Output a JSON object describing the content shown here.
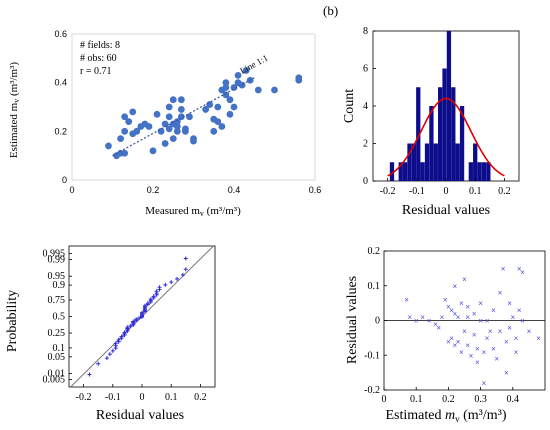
{
  "panel_label": "(b)",
  "chart_data": [
    {
      "id": "scatter",
      "type": "scatter",
      "title": "",
      "xlabel": "Measured m",
      "xlabel_sub": "v",
      "xlabel_unit": " (m³/m³)",
      "ylabel": "Estimated m",
      "ylabel_sub": "v",
      "ylabel_unit": " (m³/m³)",
      "xlim": [
        0,
        0.6
      ],
      "ylim": [
        0,
        0.6
      ],
      "xticks": [
        0,
        0.2,
        0.4,
        0.6
      ],
      "yticks": [
        0,
        0.2,
        0.4,
        0.6
      ],
      "xtick_labels": [
        "0",
        "0.2",
        "0.4",
        "0.6"
      ],
      "ytick_labels": [
        "0",
        "0.2",
        "0.4",
        "0.6"
      ],
      "annotations": [
        "# fields: 8",
        "# obs: 60",
        "r = 0.71"
      ],
      "line_label": "Line 1:1",
      "trend": {
        "x": [
          0.1,
          0.45
        ],
        "y": [
          0.1,
          0.42
        ]
      },
      "color": "#4472C4",
      "points": [
        [
          0.09,
          0.14
        ],
        [
          0.11,
          0.1
        ],
        [
          0.12,
          0.11
        ],
        [
          0.12,
          0.17
        ],
        [
          0.13,
          0.2
        ],
        [
          0.13,
          0.11
        ],
        [
          0.13,
          0.26
        ],
        [
          0.14,
          0.24
        ],
        [
          0.15,
          0.28
        ],
        [
          0.15,
          0.19
        ],
        [
          0.16,
          0.2
        ],
        [
          0.17,
          0.22
        ],
        [
          0.18,
          0.23
        ],
        [
          0.19,
          0.22
        ],
        [
          0.2,
          0.12
        ],
        [
          0.21,
          0.27
        ],
        [
          0.22,
          0.2
        ],
        [
          0.23,
          0.23
        ],
        [
          0.23,
          0.15
        ],
        [
          0.24,
          0.21
        ],
        [
          0.24,
          0.26
        ],
        [
          0.24,
          0.3
        ],
        [
          0.25,
          0.33
        ],
        [
          0.25,
          0.23
        ],
        [
          0.25,
          0.17
        ],
        [
          0.26,
          0.22
        ],
        [
          0.26,
          0.2
        ],
        [
          0.26,
          0.24
        ],
        [
          0.27,
          0.26
        ],
        [
          0.27,
          0.29
        ],
        [
          0.27,
          0.33
        ],
        [
          0.28,
          0.21
        ],
        [
          0.28,
          0.2
        ],
        [
          0.29,
          0.26
        ],
        [
          0.3,
          0.17
        ],
        [
          0.3,
          0.16
        ],
        [
          0.33,
          0.29
        ],
        [
          0.34,
          0.31
        ],
        [
          0.35,
          0.2
        ],
        [
          0.35,
          0.25
        ],
        [
          0.36,
          0.24
        ],
        [
          0.36,
          0.3
        ],
        [
          0.37,
          0.37
        ],
        [
          0.37,
          0.22
        ],
        [
          0.38,
          0.35
        ],
        [
          0.38,
          0.38
        ],
        [
          0.38,
          0.4
        ],
        [
          0.39,
          0.33
        ],
        [
          0.39,
          0.27
        ],
        [
          0.4,
          0.3
        ],
        [
          0.4,
          0.38
        ],
        [
          0.41,
          0.4
        ],
        [
          0.41,
          0.43
        ],
        [
          0.42,
          0.39
        ],
        [
          0.43,
          0.45
        ],
        [
          0.44,
          0.41
        ],
        [
          0.46,
          0.37
        ],
        [
          0.5,
          0.37
        ],
        [
          0.56,
          0.41
        ],
        [
          0.56,
          0.42
        ]
      ]
    },
    {
      "id": "histogram",
      "type": "bar",
      "xlabel": "Residual values",
      "ylabel": "Count",
      "xlim": [
        -0.25,
        0.25
      ],
      "ylim": [
        0,
        8
      ],
      "xticks": [
        -0.2,
        -0.1,
        0,
        0.1,
        0.2
      ],
      "yticks": [
        0,
        2,
        4,
        6,
        8
      ],
      "xtick_labels": [
        "-0.2",
        "-0.1",
        "0",
        "0.1",
        "0.2"
      ],
      "ytick_labels": [
        "0",
        "2",
        "4",
        "6",
        "8"
      ],
      "bin_width": 0.0147,
      "bins": [
        {
          "x": -0.185,
          "count": 1
        },
        {
          "x": -0.155,
          "count": 1
        },
        {
          "x": -0.14,
          "count": 1
        },
        {
          "x": -0.125,
          "count": 2
        },
        {
          "x": -0.11,
          "count": 2
        },
        {
          "x": -0.095,
          "count": 5
        },
        {
          "x": -0.08,
          "count": 1
        },
        {
          "x": -0.065,
          "count": 2
        },
        {
          "x": -0.05,
          "count": 4
        },
        {
          "x": -0.035,
          "count": 2
        },
        {
          "x": -0.02,
          "count": 5
        },
        {
          "x": -0.005,
          "count": 6
        },
        {
          "x": 0.01,
          "count": 8
        },
        {
          "x": 0.025,
          "count": 5
        },
        {
          "x": 0.04,
          "count": 2
        },
        {
          "x": 0.055,
          "count": 4
        },
        {
          "x": 0.085,
          "count": 1
        },
        {
          "x": 0.1,
          "count": 2
        },
        {
          "x": 0.115,
          "count": 1
        },
        {
          "x": 0.13,
          "count": 1
        },
        {
          "x": 0.145,
          "count": 1
        }
      ],
      "fit_curve": {
        "mean": 0.0,
        "sd": 0.085,
        "peak": 4.4
      },
      "bar_color": "#0d0d8c",
      "curve_color": "#e00000"
    },
    {
      "id": "probability",
      "type": "scatter",
      "xlabel": "Residual values",
      "ylabel": "Probability",
      "xlim": [
        -0.25,
        0.25
      ],
      "xticks": [
        -0.2,
        -0.1,
        0,
        0.1,
        0.2
      ],
      "xtick_labels": [
        "-0.2",
        "-0.1",
        "0",
        "0.1",
        "0.2"
      ],
      "yticks": [
        0.005,
        0.01,
        0.05,
        0.1,
        0.25,
        0.5,
        0.75,
        0.9,
        0.95,
        0.99,
        0.995
      ],
      "ytick_labels": [
        "0.005",
        "0.01",
        "0.05",
        "0.1",
        "0.25",
        "0.5",
        "0.75",
        "0.9",
        "0.95",
        "0.99",
        "0.995"
      ],
      "reference_line": {
        "mean": 0.0,
        "sd": 0.085
      },
      "color": "#2a2ad8"
    },
    {
      "id": "residuals",
      "type": "scatter",
      "xlabel": "Estimated ",
      "xlabel_var": "m",
      "xlabel_sub": "v",
      "xlabel_unit": " (m³/m³)",
      "ylabel": "Residual values",
      "xlim": [
        0,
        0.5
      ],
      "ylim": [
        -0.2,
        0.2
      ],
      "xticks": [
        0,
        0.1,
        0.2,
        0.3,
        0.4
      ],
      "yticks": [
        -0.2,
        -0.1,
        0,
        0.1,
        0.2
      ],
      "xtick_labels": [
        "0",
        "0.1",
        "0.2",
        "0.3",
        "0.4"
      ],
      "ytick_labels": [
        "-0.2",
        "-0.1",
        "0",
        "0.1",
        "0.2"
      ],
      "color": "#4a4ae0",
      "points": [
        [
          0.07,
          0.06
        ],
        [
          0.08,
          0.01
        ],
        [
          0.1,
          0.0
        ],
        [
          0.12,
          0.01
        ],
        [
          0.14,
          0.0
        ],
        [
          0.16,
          -0.01
        ],
        [
          0.17,
          -0.02
        ],
        [
          0.18,
          0.01
        ],
        [
          0.19,
          0.06
        ],
        [
          0.2,
          -0.06
        ],
        [
          0.2,
          0.04
        ],
        [
          0.21,
          0.03
        ],
        [
          0.21,
          -0.05
        ],
        [
          0.22,
          0.02
        ],
        [
          0.22,
          -0.07
        ],
        [
          0.22,
          0.1
        ],
        [
          0.23,
          0.01
        ],
        [
          0.23,
          -0.06
        ],
        [
          0.24,
          0.05
        ],
        [
          0.24,
          -0.09
        ],
        [
          0.25,
          0.12
        ],
        [
          0.25,
          -0.03
        ],
        [
          0.26,
          0.01
        ],
        [
          0.26,
          -0.07
        ],
        [
          0.26,
          0.04
        ],
        [
          0.27,
          -0.1
        ],
        [
          0.28,
          -0.04
        ],
        [
          0.28,
          0.02
        ],
        [
          0.29,
          -0.12
        ],
        [
          0.29,
          -0.08
        ],
        [
          0.3,
          0.0
        ],
        [
          0.3,
          0.05
        ],
        [
          0.31,
          -0.09
        ],
        [
          0.31,
          -0.18
        ],
        [
          0.32,
          0.0
        ],
        [
          0.32,
          -0.05
        ],
        [
          0.33,
          -0.03
        ],
        [
          0.34,
          0.03
        ],
        [
          0.34,
          -0.08
        ],
        [
          0.35,
          -0.11
        ],
        [
          0.36,
          0.08
        ],
        [
          0.36,
          -0.03
        ],
        [
          0.37,
          0.15
        ],
        [
          0.38,
          -0.06
        ],
        [
          0.38,
          -0.15
        ],
        [
          0.39,
          0.05
        ],
        [
          0.39,
          -0.02
        ],
        [
          0.4,
          0.01
        ],
        [
          0.41,
          -0.05
        ],
        [
          0.41,
          -0.09
        ],
        [
          0.42,
          0.03
        ],
        [
          0.42,
          0.15
        ],
        [
          0.43,
          0.14
        ],
        [
          0.43,
          0.0
        ],
        [
          0.45,
          -0.03
        ],
        [
          0.48,
          -0.05
        ]
      ]
    }
  ]
}
